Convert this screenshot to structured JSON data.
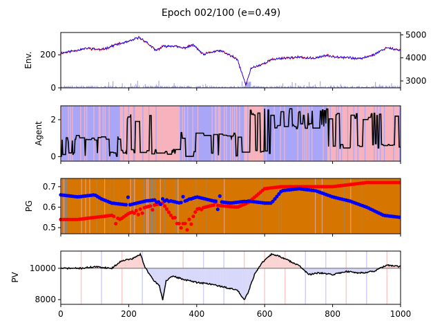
{
  "chart_data": [
    {
      "type": "line",
      "title": "Epoch 002/100 (e=0.49)",
      "panel": "env",
      "ylabel": "Env.",
      "xlim": [
        0,
        1000
      ],
      "ylim": [
        0,
        335
      ],
      "yticks": [
        0,
        200
      ],
      "y2ticks": [
        3000,
        4000,
        5000
      ],
      "y2lim": [
        2700,
        5100
      ],
      "price_path": [
        [
          0,
          210
        ],
        [
          40,
          225
        ],
        [
          80,
          240
        ],
        [
          120,
          230
        ],
        [
          160,
          260
        ],
        [
          200,
          280
        ],
        [
          230,
          305
        ],
        [
          250,
          280
        ],
        [
          280,
          225
        ],
        [
          300,
          250
        ],
        [
          330,
          255
        ],
        [
          360,
          240
        ],
        [
          390,
          260
        ],
        [
          420,
          200
        ],
        [
          440,
          215
        ],
        [
          470,
          225
        ],
        [
          500,
          195
        ],
        [
          520,
          170
        ],
        [
          545,
          15
        ],
        [
          560,
          120
        ],
        [
          590,
          140
        ],
        [
          620,
          170
        ],
        [
          650,
          180
        ],
        [
          700,
          185
        ],
        [
          740,
          178
        ],
        [
          780,
          195
        ],
        [
          800,
          190
        ],
        [
          840,
          185
        ],
        [
          880,
          175
        ],
        [
          920,
          200
        ],
        [
          960,
          245
        ],
        [
          1000,
          225
        ]
      ],
      "volume_color": "#8a8ae0",
      "colors": {
        "price": "#0000ff",
        "price_alt": "#ff0000",
        "volume": "#8a8ae0"
      }
    },
    {
      "type": "line",
      "panel": "agent",
      "ylabel": "Agent",
      "xlim": [
        0,
        1000
      ],
      "ylim": [
        -0.25,
        2.75
      ],
      "yticks": [
        0,
        2
      ],
      "regions": [
        {
          "x0": 0,
          "x1": 175,
          "color": "#a9a6f7"
        },
        {
          "x0": 175,
          "x1": 350,
          "color": "#f7b3bd"
        },
        {
          "x0": 350,
          "x1": 540,
          "color": "#a9a6f7"
        },
        {
          "x0": 540,
          "x1": 600,
          "color": "#f7b3bd"
        },
        {
          "x0": 600,
          "x1": 785,
          "color": "#a9a6f7"
        },
        {
          "x0": 785,
          "x1": 1000,
          "color": "#f7b3bd"
        }
      ],
      "action_levels": [
        {
          "x0": 0,
          "x1": 175,
          "high": 1.2,
          "low": 0
        },
        {
          "x0": 175,
          "x1": 350,
          "high": 2.3,
          "low": 0.1
        },
        {
          "x0": 350,
          "x1": 540,
          "high": 1.3,
          "low": 0
        },
        {
          "x0": 540,
          "x1": 620,
          "high": 2.6,
          "low": 0.1
        },
        {
          "x0": 620,
          "x1": 785,
          "high": 2.6,
          "low": 1.5
        },
        {
          "x0": 785,
          "x1": 1000,
          "high": 2.4,
          "low": 0.4
        }
      ]
    },
    {
      "type": "scatter",
      "panel": "pg",
      "ylabel": "PG",
      "xlim": [
        0,
        1000
      ],
      "ylim": [
        0.47,
        0.74
      ],
      "yticks": [
        0.5,
        0.6,
        0.7
      ],
      "background_color": "#d67600",
      "series": [
        {
          "color": "#ff0000",
          "values": [
            [
              0,
              0.54
            ],
            [
              50,
              0.54
            ],
            [
              100,
              0.55
            ],
            [
              150,
              0.56
            ],
            [
              175,
              0.54
            ],
            [
              200,
              0.57
            ],
            [
              250,
              0.6
            ],
            [
              300,
              0.62
            ],
            [
              340,
              0.52
            ],
            [
              380,
              0.52
            ],
            [
              400,
              0.59
            ],
            [
              450,
              0.61
            ],
            [
              520,
              0.6
            ],
            [
              550,
              0.62
            ],
            [
              600,
              0.69
            ],
            [
              650,
              0.7
            ],
            [
              700,
              0.7
            ],
            [
              750,
              0.7
            ],
            [
              800,
              0.7
            ],
            [
              850,
              0.71
            ],
            [
              900,
              0.72
            ],
            [
              950,
              0.72
            ],
            [
              1000,
              0.72
            ]
          ]
        },
        {
          "color": "#0000ff",
          "values": [
            [
              0,
              0.66
            ],
            [
              50,
              0.65
            ],
            [
              100,
              0.66
            ],
            [
              120,
              0.64
            ],
            [
              150,
              0.62
            ],
            [
              200,
              0.61
            ],
            [
              250,
              0.63
            ],
            [
              300,
              0.64
            ],
            [
              350,
              0.62
            ],
            [
              400,
              0.65
            ],
            [
              450,
              0.63
            ],
            [
              500,
              0.62
            ],
            [
              550,
              0.63
            ],
            [
              600,
              0.62
            ],
            [
              620,
              0.62
            ],
            [
              650,
              0.68
            ],
            [
              700,
              0.69
            ],
            [
              750,
              0.68
            ],
            [
              800,
              0.65
            ],
            [
              850,
              0.63
            ],
            [
              900,
              0.6
            ],
            [
              950,
              0.56
            ],
            [
              1000,
              0.55
            ]
          ]
        }
      ]
    },
    {
      "type": "line",
      "panel": "pv",
      "ylabel": "PV",
      "xlabel": "",
      "xlim": [
        0,
        1000
      ],
      "ylim": [
        7700,
        11100
      ],
      "yticks": [
        8000,
        10000
      ],
      "xticks": [
        0,
        200,
        400,
        600,
        800,
        1000
      ],
      "baseline": 10000,
      "pv_path": [
        [
          0,
          10000
        ],
        [
          60,
          10000
        ],
        [
          100,
          10100
        ],
        [
          150,
          10000
        ],
        [
          180,
          10500
        ],
        [
          210,
          10600
        ],
        [
          235,
          10900
        ],
        [
          245,
          10200
        ],
        [
          270,
          9300
        ],
        [
          290,
          8900
        ],
        [
          300,
          8000
        ],
        [
          310,
          9200
        ],
        [
          330,
          9500
        ],
        [
          360,
          9300
        ],
        [
          400,
          9100
        ],
        [
          440,
          9000
        ],
        [
          480,
          8800
        ],
        [
          520,
          8600
        ],
        [
          540,
          8000
        ],
        [
          550,
          8400
        ],
        [
          570,
          9600
        ],
        [
          590,
          10300
        ],
        [
          610,
          10700
        ],
        [
          620,
          10900
        ],
        [
          640,
          10800
        ],
        [
          660,
          10600
        ],
        [
          700,
          10200
        ],
        [
          730,
          9600
        ],
        [
          760,
          9700
        ],
        [
          800,
          9600
        ],
        [
          840,
          9800
        ],
        [
          880,
          9700
        ],
        [
          920,
          9800
        ],
        [
          960,
          10200
        ],
        [
          1000,
          10100
        ]
      ],
      "colors": {
        "line": "#000000",
        "gain_fill": "#fbd4d4",
        "loss_fill": "#d8d8fb",
        "baseline": "#808080"
      }
    }
  ]
}
